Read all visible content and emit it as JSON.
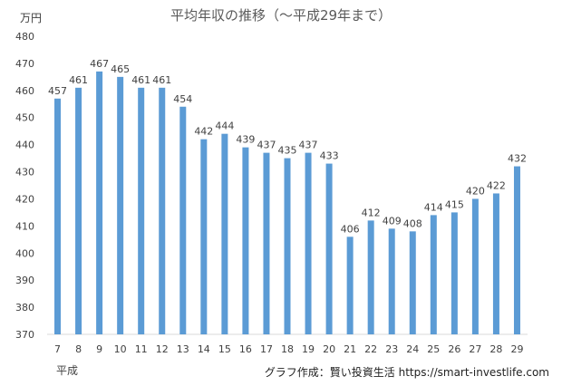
{
  "chart_data": {
    "type": "bar",
    "title": "平均年収の推移（〜平成29年まで）",
    "ylabel": "万円",
    "xlabel": "平成",
    "categories": [
      "7",
      "8",
      "9",
      "10",
      "11",
      "12",
      "13",
      "14",
      "15",
      "16",
      "17",
      "18",
      "19",
      "20",
      "21",
      "22",
      "23",
      "24",
      "25",
      "26",
      "27",
      "28",
      "29"
    ],
    "values": [
      457,
      461,
      467,
      465,
      461,
      461,
      454,
      442,
      444,
      439,
      437,
      435,
      437,
      433,
      406,
      412,
      409,
      408,
      414,
      415,
      420,
      422,
      432
    ],
    "ylim": [
      370,
      480
    ],
    "yticks": [
      370,
      380,
      390,
      400,
      410,
      420,
      430,
      440,
      450,
      460,
      470,
      480
    ],
    "grid": false,
    "data_labels": true,
    "bar_color": "#5b9bd5"
  },
  "credit": "グラフ作成：賢い投資生活 https://smart-investlife.com"
}
